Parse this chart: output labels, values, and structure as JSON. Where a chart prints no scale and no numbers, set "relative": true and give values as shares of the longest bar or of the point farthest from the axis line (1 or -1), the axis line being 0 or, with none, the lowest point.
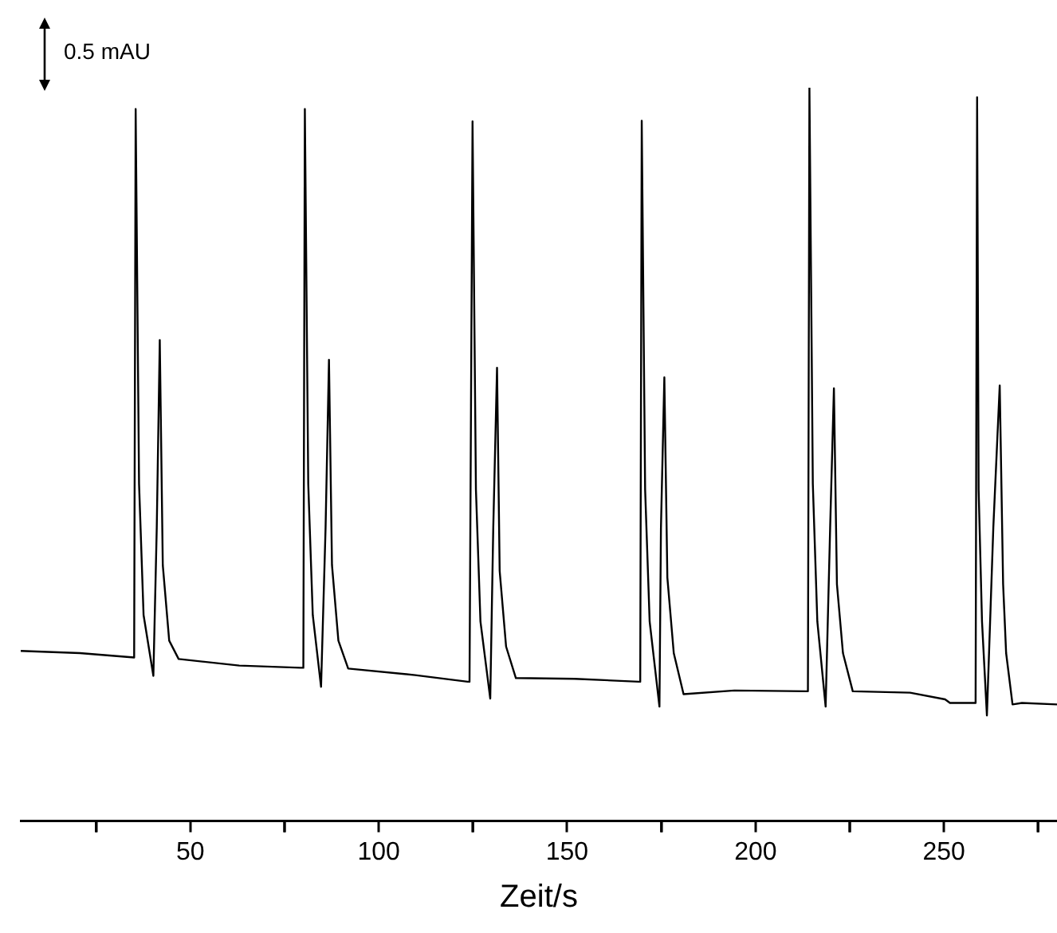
{
  "chart_data": {
    "type": "line",
    "relative": true,
    "xlabel": "Zeit/s",
    "annotations": [
      "0.5 mAU"
    ],
    "marker": "none",
    "line_style": "solid",
    "grid": false,
    "legend": false,
    "tick_labels": "x",
    "xlim": [
      5,
      280
    ],
    "xticks": [
      {
        "value": 25,
        "label": null
      },
      50,
      {
        "value": 75,
        "label": null
      },
      100,
      {
        "value": 125,
        "label": null
      },
      150,
      {
        "value": 175,
        "label": null
      },
      200,
      {
        "value": 225,
        "label": null
      },
      250,
      {
        "value": 275,
        "label": null
      }
    ],
    "series": [
      {
        "color": "#000000",
        "x": [
          5,
          20.7,
          35.1,
          35.5,
          36.4,
          37.6,
          40.2,
          41.1,
          41.9,
          42.7,
          44.4,
          46.9,
          63,
          79.2,
          80,
          80.4,
          81.3,
          82.5,
          84.7,
          85.9,
          86.8,
          87.6,
          89.3,
          91.9,
          109.7,
          123.6,
          124.1,
          124.9,
          125.8,
          127,
          129.6,
          130.4,
          131.4,
          132.1,
          133.8,
          136.4,
          152,
          169,
          169.4,
          169.8,
          170.7,
          171.9,
          174.5,
          174.9,
          175.8,
          176.6,
          178.3,
          180.9,
          194.4,
          213.5,
          213.9,
          214.3,
          215.2,
          216.4,
          218.6,
          219.8,
          220.8,
          221.6,
          223.2,
          225.8,
          241,
          250.3,
          251.6,
          258.4,
          258.8,
          259.2,
          260.1,
          261.4,
          263.1,
          264.8,
          265.7,
          266.5,
          268.2,
          270.7,
          280
        ],
        "values": [
          0.232,
          0.229,
          0.223,
          0.971,
          0.46,
          0.281,
          0.198,
          0.4,
          0.656,
          0.349,
          0.246,
          0.221,
          0.212,
          0.209,
          0.209,
          0.971,
          0.46,
          0.281,
          0.183,
          0.4,
          0.629,
          0.349,
          0.246,
          0.208,
          0.199,
          0.19,
          0.19,
          0.954,
          0.452,
          0.272,
          0.167,
          0.4,
          0.618,
          0.341,
          0.238,
          0.195,
          0.194,
          0.19,
          0.19,
          0.955,
          0.452,
          0.272,
          0.156,
          0.4,
          0.605,
          0.332,
          0.229,
          0.173,
          0.178,
          0.177,
          0.177,
          1,
          0.46,
          0.272,
          0.156,
          0.4,
          0.59,
          0.323,
          0.229,
          0.177,
          0.175,
          0.166,
          0.161,
          0.161,
          0.987,
          0.452,
          0.272,
          0.144,
          0.4,
          0.594,
          0.323,
          0.229,
          0.159,
          0.161,
          0.159
        ]
      }
    ]
  }
}
